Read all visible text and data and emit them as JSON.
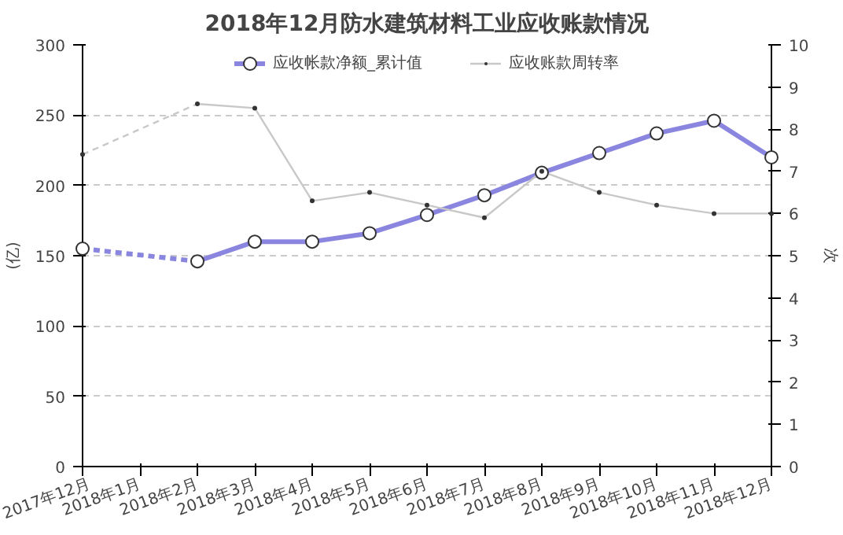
{
  "chart_data": {
    "type": "line",
    "title": "2018年12月防水建筑材料工业应收账款情况",
    "ylabel": "(亿)",
    "y2label": "次",
    "categories": [
      "2017年12月",
      "2018年1月",
      "2018年2月",
      "2018年3月",
      "2018年4月",
      "2018年5月",
      "2018年6月",
      "2018年7月",
      "2018年8月",
      "2018年9月",
      "2018年10月",
      "2018年11月",
      "2018年12月"
    ],
    "series": [
      {
        "name": "应收帐款净额_累计值",
        "color": "#8a86e0",
        "marker": "circle",
        "values": [
          155,
          null,
          146,
          160,
          160,
          166,
          179,
          193,
          209,
          223,
          237,
          246,
          220
        ]
      },
      {
        "name": "应收账款周转率",
        "color": "#c8c8c8",
        "marker": "dot",
        "axis": "y2",
        "values": [
          7.4,
          null,
          8.6,
          8.5,
          6.3,
          6.5,
          6.2,
          5.9,
          7.0,
          6.5,
          6.2,
          6.0,
          6.0
        ]
      }
    ],
    "ylim": [
      0,
      300
    ],
    "yticks": [
      0,
      50,
      100,
      150,
      200,
      250,
      300
    ],
    "y2lim": [
      0,
      10
    ],
    "y2ticks": [
      0,
      1,
      2,
      3,
      4,
      5,
      6,
      7,
      8,
      9,
      10
    ],
    "grid": "y",
    "legend": "top"
  }
}
